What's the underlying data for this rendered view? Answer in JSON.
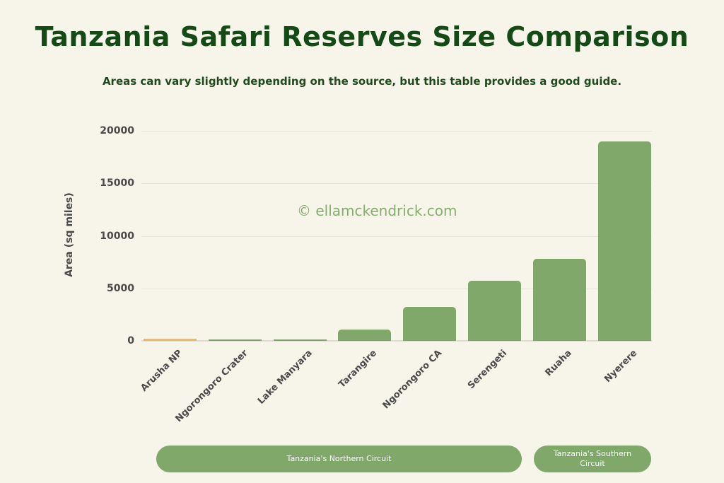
{
  "header": {
    "title": "Tanzania Safari Reserves Size Comparison",
    "subtitle": "Areas can vary slightly depending on the source, but this table provides a good guide."
  },
  "watermark": "© ellamckendrick.com",
  "axis": {
    "ylabel": "Area (sq miles)",
    "yticks": [
      "20000",
      "15000",
      "10000",
      "5000",
      "0"
    ]
  },
  "circuits": {
    "northern": "Tanzania's Northern Circuit",
    "southern": "Tanzania's Southern Circuit"
  },
  "colors": {
    "background": "#f7f4ea",
    "title": "#134a16",
    "bar": "#80a86a",
    "highlight_bar": "#f5b955",
    "watermark": "#86ad70"
  },
  "chart_data": {
    "type": "bar",
    "title": "Tanzania Safari Reserves Size Comparison",
    "subtitle": "Areas can vary slightly depending on the source, but this table provides a good guide.",
    "xlabel": "",
    "ylabel": "Area (sq miles)",
    "ylim": [
      0,
      20000
    ],
    "yticks": [
      0,
      5000,
      10000,
      15000,
      20000
    ],
    "grid": true,
    "categories": [
      "Arusha NP",
      "Ngorongoro Crater",
      "Lake Manyara",
      "Tarangire",
      "Ngorongoro CA",
      "Serengeti",
      "Ruaha",
      "Nyerere"
    ],
    "values": [
      212,
      100,
      125,
      1100,
      3200,
      5700,
      7800,
      19000
    ],
    "bar_colors": [
      "#f5b955",
      "#80a86a",
      "#80a86a",
      "#80a86a",
      "#80a86a",
      "#80a86a",
      "#80a86a",
      "#80a86a"
    ],
    "groups": [
      {
        "label": "Tanzania's Northern Circuit",
        "categories": [
          "Arusha NP",
          "Ngorongoro Crater",
          "Lake Manyara",
          "Tarangire",
          "Ngorongoro CA",
          "Serengeti"
        ]
      },
      {
        "label": "Tanzania's Southern Circuit",
        "categories": [
          "Ruaha",
          "Nyerere"
        ]
      }
    ],
    "annotations": [
      "© ellamckendrick.com"
    ]
  }
}
